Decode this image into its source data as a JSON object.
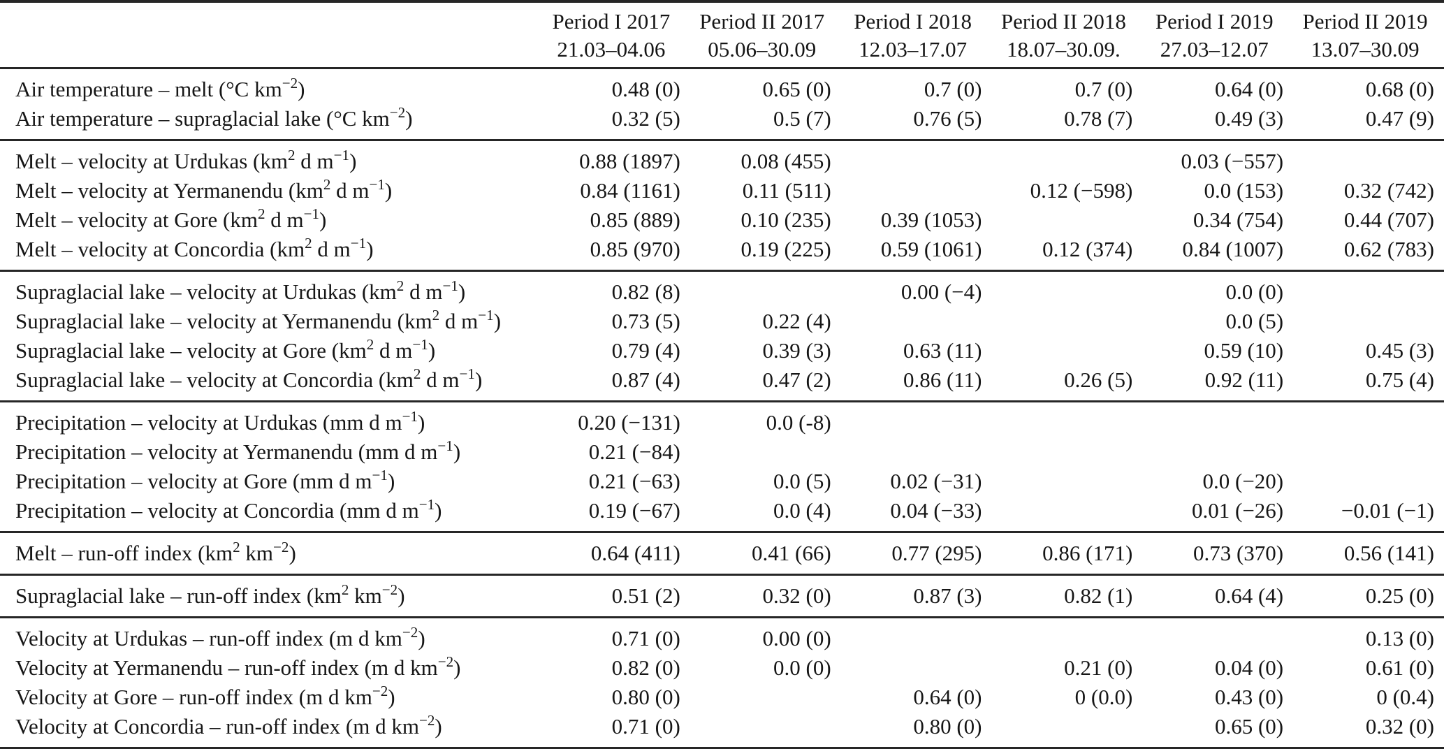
{
  "table": {
    "row_label_header": "",
    "columns": [
      {
        "period": "Period I 2017",
        "dates": "21.03–04.06"
      },
      {
        "period": "Period II 2017",
        "dates": "05.06–30.09"
      },
      {
        "period": "Period I 2018",
        "dates": "12.03–17.07"
      },
      {
        "period": "Period II 2018",
        "dates": "18.07–30.09."
      },
      {
        "period": "Period I 2019",
        "dates": "27.03–12.07"
      },
      {
        "period": "Period II 2019",
        "dates": "13.07–30.09"
      }
    ],
    "groups": [
      {
        "rows": [
          {
            "label": "Air temperature – melt (°C km^{−2})",
            "values": [
              "0.48 (0)",
              "0.65 (0)",
              "0.7 (0)",
              "0.7 (0)",
              "0.64 (0)",
              "0.68 (0)"
            ]
          },
          {
            "label": "Air temperature – supraglacial lake (°C km^{−2})",
            "values": [
              "0.32 (5)",
              "0.5 (7)",
              "0.76 (5)",
              "0.78 (7)",
              "0.49 (3)",
              "0.47 (9)"
            ]
          }
        ]
      },
      {
        "rows": [
          {
            "label": "Melt – velocity at Urdukas (km^{2} d m^{−1})",
            "values": [
              "0.88 (1897)",
              "0.08 (455)",
              "",
              "",
              "0.03 (−557)",
              ""
            ]
          },
          {
            "label": "Melt – velocity at Yermanendu (km^{2} d m^{−1})",
            "values": [
              "0.84 (1161)",
              "0.11 (511)",
              "",
              "0.12 (−598)",
              "0.0 (153)",
              "0.32 (742)"
            ]
          },
          {
            "label": "Melt – velocity at Gore (km^{2} d m^{−1})",
            "values": [
              "0.85 (889)",
              "0.10 (235)",
              "0.39 (1053)",
              "",
              "0.34 (754)",
              "0.44 (707)"
            ]
          },
          {
            "label": "Melt – velocity at Concordia (km^{2} d m^{−1})",
            "values": [
              "0.85 (970)",
              "0.19 (225)",
              "0.59 (1061)",
              "0.12 (374)",
              "0.84 (1007)",
              "0.62 (783)"
            ]
          }
        ]
      },
      {
        "rows": [
          {
            "label": "Supraglacial lake – velocity at Urdukas (km^{2} d m^{−1})",
            "values": [
              "0.82 (8)",
              "",
              "0.00 (−4)",
              "",
              "0.0 (0)",
              ""
            ]
          },
          {
            "label": "Supraglacial lake – velocity at Yermanendu (km^{2} d m^{−1})",
            "values": [
              "0.73 (5)",
              "0.22 (4)",
              "",
              "",
              "0.0 (5)",
              ""
            ]
          },
          {
            "label": "Supraglacial lake – velocity at Gore (km^{2} d m^{−1})",
            "values": [
              "0.79 (4)",
              "0.39 (3)",
              "0.63 (11)",
              "",
              "0.59 (10)",
              "0.45 (3)"
            ]
          },
          {
            "label": "Supraglacial lake – velocity at Concordia (km^{2} d m^{−1})",
            "values": [
              "0.87 (4)",
              "0.47 (2)",
              "0.86 (11)",
              "0.26 (5)",
              "0.92 (11)",
              "0.75 (4)"
            ]
          }
        ]
      },
      {
        "rows": [
          {
            "label": "Precipitation – velocity at Urdukas (mm d m^{−1})",
            "values": [
              "0.20 (−131)",
              "0.0 (-8)",
              "",
              "",
              "",
              ""
            ]
          },
          {
            "label": "Precipitation – velocity at Yermanendu (mm d m^{−1})",
            "values": [
              "0.21 (−84)",
              "",
              "",
              "",
              "",
              ""
            ]
          },
          {
            "label": "Precipitation – velocity at Gore (mm d m^{−1})",
            "values": [
              "0.21 (−63)",
              "0.0 (5)",
              "0.02 (−31)",
              "",
              "0.0 (−20)",
              ""
            ]
          },
          {
            "label": "Precipitation – velocity at Concordia (mm d m^{−1})",
            "values": [
              "0.19 (−67)",
              "0.0 (4)",
              "0.04 (−33)",
              "",
              "0.01 (−26)",
              "−0.01 (−1)"
            ]
          }
        ]
      },
      {
        "rows": [
          {
            "label": "Melt – run-off index (km^{2} km^{−2})",
            "values": [
              "0.64 (411)",
              "0.41 (66)",
              "0.77 (295)",
              "0.86 (171)",
              "0.73 (370)",
              "0.56 (141)"
            ]
          }
        ]
      },
      {
        "rows": [
          {
            "label": "Supraglacial lake – run-off index (km^{2} km^{−2})",
            "values": [
              "0.51 (2)",
              "0.32 (0)",
              "0.87 (3)",
              "0.82 (1)",
              "0.64 (4)",
              "0.25 (0)"
            ]
          }
        ]
      },
      {
        "rows": [
          {
            "label": "Velocity at Urdukas – run-off index (m d km^{−2})",
            "values": [
              "0.71 (0)",
              "0.00 (0)",
              "",
              "",
              "",
              "0.13 (0)"
            ]
          },
          {
            "label": "Velocity at Yermanendu – run-off index (m d km^{−2})",
            "values": [
              "0.82 (0)",
              "0.0 (0)",
              "",
              "0.21 (0)",
              "0.04 (0)",
              "0.61 (0)"
            ]
          },
          {
            "label": "Velocity at Gore – run-off index (m d km^{−2})",
            "values": [
              "0.80 (0)",
              "",
              "0.64 (0)",
              "0 (0.0)",
              "0.43 (0)",
              "0 (0.4)"
            ]
          },
          {
            "label": "Velocity at Concordia – run-off index (m d km^{−2})",
            "values": [
              "0.71 (0)",
              "",
              "0.80 (0)",
              "",
              "0.65 (0)",
              "0.32 (0)"
            ]
          }
        ]
      }
    ]
  }
}
